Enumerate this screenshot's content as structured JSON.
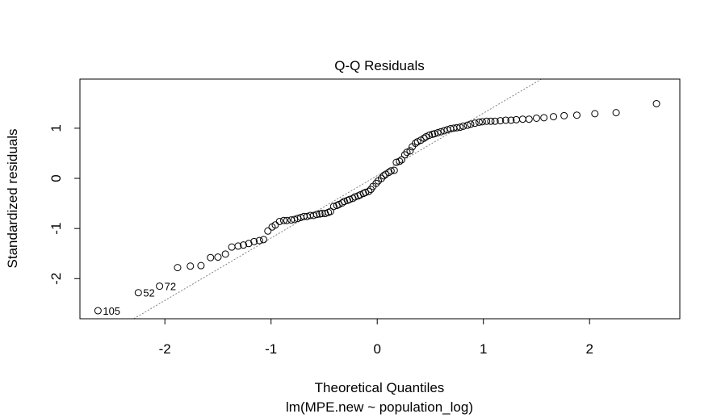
{
  "chart_data": {
    "type": "scatter",
    "title": "Q-Q Residuals",
    "xlabel": "Theoretical Quantiles",
    "ylabel": "Standardized residuals",
    "subtitle": "lm(MPE.new ~ population_log)",
    "xlim": [
      -2.8,
      2.85
    ],
    "ylim": [
      -2.8,
      1.98
    ],
    "x_ticks": [
      -2,
      -1,
      0,
      1,
      2
    ],
    "y_ticks": [
      -2,
      -1,
      0,
      1
    ],
    "x_tick_labels": [
      "-2",
      "-1",
      "0",
      "1",
      "2"
    ],
    "y_tick_labels": [
      "-2",
      "-1",
      "0",
      "1"
    ],
    "grid": false,
    "reference_line": {
      "intercept": 0.055,
      "slope": 1.245
    },
    "points": [
      [
        -2.63,
        -2.64
      ],
      [
        -2.25,
        -2.28
      ],
      [
        -2.05,
        -2.15
      ],
      [
        -1.88,
        -1.78
      ],
      [
        -1.76,
        -1.75
      ],
      [
        -1.66,
        -1.74
      ],
      [
        -1.57,
        -1.58
      ],
      [
        -1.5,
        -1.57
      ],
      [
        -1.43,
        -1.51
      ],
      [
        -1.37,
        -1.37
      ],
      [
        -1.31,
        -1.35
      ],
      [
        -1.26,
        -1.33
      ],
      [
        -1.21,
        -1.3
      ],
      [
        -1.16,
        -1.26
      ],
      [
        -1.11,
        -1.24
      ],
      [
        -1.07,
        -1.22
      ],
      [
        -1.03,
        -1.05
      ],
      [
        -0.99,
        -0.97
      ],
      [
        -0.96,
        -0.93
      ],
      [
        -0.92,
        -0.86
      ],
      [
        -0.88,
        -0.84
      ],
      [
        -0.85,
        -0.84
      ],
      [
        -0.81,
        -0.83
      ],
      [
        -0.78,
        -0.82
      ],
      [
        -0.75,
        -0.8
      ],
      [
        -0.72,
        -0.78
      ],
      [
        -0.69,
        -0.76
      ],
      [
        -0.66,
        -0.76
      ],
      [
        -0.63,
        -0.74
      ],
      [
        -0.6,
        -0.74
      ],
      [
        -0.57,
        -0.72
      ],
      [
        -0.54,
        -0.71
      ],
      [
        -0.52,
        -0.7
      ],
      [
        -0.49,
        -0.7
      ],
      [
        -0.46,
        -0.68
      ],
      [
        -0.44,
        -0.66
      ],
      [
        -0.41,
        -0.56
      ],
      [
        -0.38,
        -0.54
      ],
      [
        -0.36,
        -0.52
      ],
      [
        -0.33,
        -0.49
      ],
      [
        -0.31,
        -0.46
      ],
      [
        -0.28,
        -0.44
      ],
      [
        -0.26,
        -0.42
      ],
      [
        -0.23,
        -0.4
      ],
      [
        -0.21,
        -0.37
      ],
      [
        -0.18,
        -0.35
      ],
      [
        -0.16,
        -0.33
      ],
      [
        -0.13,
        -0.3
      ],
      [
        -0.11,
        -0.28
      ],
      [
        -0.08,
        -0.26
      ],
      [
        -0.06,
        -0.22
      ],
      [
        -0.04,
        -0.16
      ],
      [
        -0.01,
        -0.1
      ],
      [
        0.01,
        -0.05
      ],
      [
        0.04,
        0.0
      ],
      [
        0.06,
        0.05
      ],
      [
        0.08,
        0.08
      ],
      [
        0.11,
        0.12
      ],
      [
        0.13,
        0.15
      ],
      [
        0.16,
        0.16
      ],
      [
        0.18,
        0.32
      ],
      [
        0.21,
        0.34
      ],
      [
        0.23,
        0.37
      ],
      [
        0.26,
        0.47
      ],
      [
        0.28,
        0.52
      ],
      [
        0.31,
        0.55
      ],
      [
        0.33,
        0.63
      ],
      [
        0.36,
        0.7
      ],
      [
        0.38,
        0.73
      ],
      [
        0.41,
        0.76
      ],
      [
        0.44,
        0.8
      ],
      [
        0.46,
        0.83
      ],
      [
        0.49,
        0.86
      ],
      [
        0.52,
        0.88
      ],
      [
        0.54,
        0.89
      ],
      [
        0.57,
        0.91
      ],
      [
        0.6,
        0.93
      ],
      [
        0.63,
        0.95
      ],
      [
        0.66,
        0.97
      ],
      [
        0.69,
        0.99
      ],
      [
        0.72,
        1.0
      ],
      [
        0.75,
        1.01
      ],
      [
        0.78,
        1.02
      ],
      [
        0.81,
        1.04
      ],
      [
        0.85,
        1.06
      ],
      [
        0.88,
        1.08
      ],
      [
        0.92,
        1.1
      ],
      [
        0.96,
        1.12
      ],
      [
        0.99,
        1.13
      ],
      [
        1.03,
        1.14
      ],
      [
        1.07,
        1.14
      ],
      [
        1.11,
        1.14
      ],
      [
        1.16,
        1.15
      ],
      [
        1.21,
        1.16
      ],
      [
        1.26,
        1.16
      ],
      [
        1.31,
        1.17
      ],
      [
        1.37,
        1.18
      ],
      [
        1.43,
        1.18
      ],
      [
        1.5,
        1.2
      ],
      [
        1.57,
        1.21
      ],
      [
        1.66,
        1.23
      ],
      [
        1.76,
        1.25
      ],
      [
        1.88,
        1.26
      ],
      [
        2.05,
        1.29
      ],
      [
        2.25,
        1.31
      ],
      [
        2.63,
        1.49
      ]
    ],
    "point_labels": [
      {
        "text": "105",
        "point": 0,
        "side": "right"
      },
      {
        "text": "52",
        "point": 1,
        "side": "right"
      },
      {
        "text": "72",
        "point": 2,
        "side": "right"
      }
    ]
  }
}
